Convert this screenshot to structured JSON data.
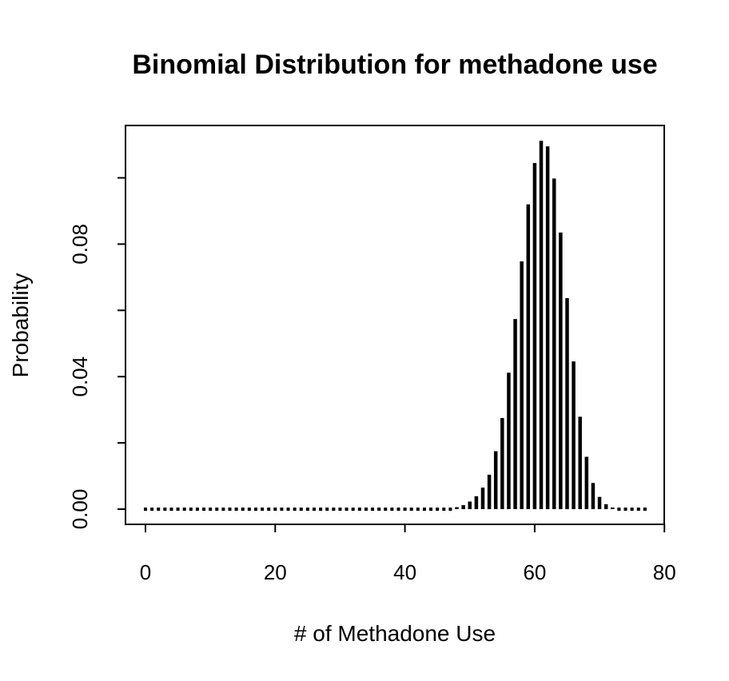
{
  "chart_data": {
    "type": "bar",
    "style": "histogram-spikes",
    "title": "Binomial Distribution for methadone use",
    "xlabel": "# of Methadone Use",
    "ylabel": "Probability",
    "xlim": [
      0,
      80
    ],
    "ylim": [
      0,
      0.11
    ],
    "xticks": [
      "0",
      "20",
      "40",
      "60",
      "80"
    ],
    "yticks": [
      "0.00",
      "0.04",
      "0.08"
    ],
    "yticks_unlabeled": [
      0.02,
      0.06,
      0.1
    ],
    "grid": false,
    "bar_color": "#000000",
    "x": [
      0,
      1,
      2,
      3,
      4,
      5,
      6,
      7,
      8,
      9,
      10,
      11,
      12,
      13,
      14,
      15,
      16,
      17,
      18,
      19,
      20,
      21,
      22,
      23,
      24,
      25,
      26,
      27,
      28,
      29,
      30,
      31,
      32,
      33,
      34,
      35,
      36,
      37,
      38,
      39,
      40,
      41,
      42,
      43,
      44,
      45,
      46,
      47,
      48,
      49,
      50,
      51,
      52,
      53,
      54,
      55,
      56,
      57,
      58,
      59,
      60,
      61,
      62,
      63,
      64,
      65,
      66,
      67,
      68,
      69,
      70,
      71,
      72,
      73,
      74,
      75,
      76,
      77
    ],
    "values": [
      0,
      0,
      0,
      0,
      0,
      0,
      0,
      0,
      0,
      0,
      0,
      0,
      0,
      0,
      0,
      0,
      0,
      0,
      0,
      0,
      0,
      0,
      0,
      0,
      0,
      0,
      0,
      0,
      0,
      0,
      0,
      0,
      0,
      0,
      0,
      0,
      0,
      0,
      0,
      0,
      0,
      0,
      0,
      0,
      0,
      0,
      0.0001,
      0.0003,
      0.0006,
      0.0012,
      0.0023,
      0.0039,
      0.0065,
      0.0104,
      0.0175,
      0.0275,
      0.0412,
      0.0574,
      0.0748,
      0.092,
      0.1045,
      0.1112,
      0.1095,
      0.0998,
      0.0835,
      0.0637,
      0.0446,
      0.0279,
      0.0158,
      0.0079,
      0.0037,
      0.0015,
      0.0005,
      0.0002,
      0.0001,
      0,
      0,
      0
    ]
  }
}
